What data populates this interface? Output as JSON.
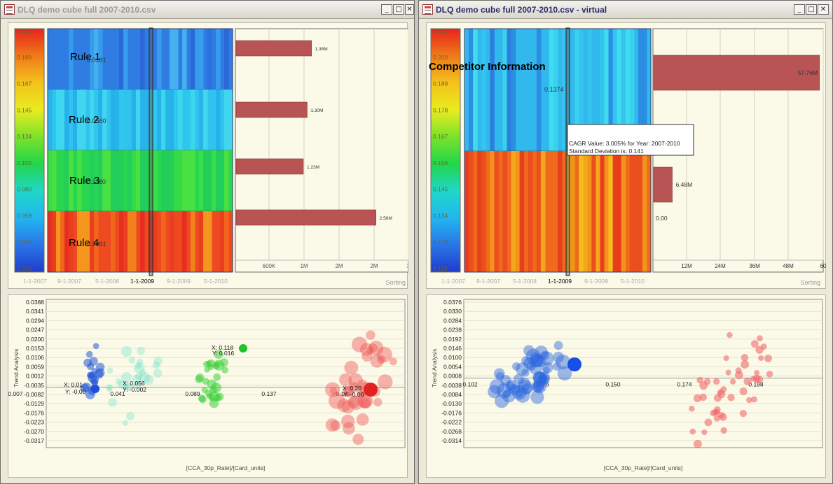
{
  "windows": [
    {
      "title": "DLQ demo cube full 2007-2010.csv",
      "colorbar": {
        "ticks": [
          "0.211",
          "0.189",
          "0.167",
          "0.145",
          "0.124",
          "0.102",
          "0.080",
          "0.058",
          "0.036",
          "0.015"
        ],
        "colors": [
          "#e8231c",
          "#f07a1a",
          "#f4c21c",
          "#e9ec1f",
          "#7be22a",
          "#22d64a",
          "#20d8c8",
          "#22b6ef",
          "#2a76e6",
          "#1f3bcc"
        ]
      },
      "heatmap": {
        "rows": [
          {
            "label": "Rule 1",
            "value": "0.0181",
            "base": "#2f7de2",
            "stripes": [
              "#3aa2ee",
              "#2b6fdc",
              "#4ab7f2",
              "#2a64d6",
              "#38a0ec"
            ]
          },
          {
            "label": "Rule 2",
            "value": "0.0560",
            "base": "#31c3ef",
            "stripes": [
              "#2ec9ed",
              "#3bdcec",
              "#25aeea",
              "#44d8ef",
              "#27b2ea"
            ]
          },
          {
            "label": "Rule 3",
            "value": "0.1180",
            "base": "#29d64f",
            "stripes": [
              "#3ce04a",
              "#21cd58",
              "#4ee240",
              "#22cc5c",
              "#37da48"
            ]
          },
          {
            "label": "Rule 4",
            "value": "0.2061",
            "base": "#ee4a22",
            "stripes": [
              "#f26a1c",
              "#e42a1e",
              "#f5a21c",
              "#ea3c1f",
              "#f28a1c"
            ]
          }
        ],
        "x_ticks": [
          "1-1-2007",
          "9-1-2007",
          "5-1-2008",
          "1-1-2009",
          "9-1-2009",
          "5-1-2010"
        ],
        "selected_tick": "1-1-2009"
      },
      "bars": {
        "labels": [
          "1.38M",
          "1.30M",
          "1.23M",
          "2.56M"
        ],
        "values": [
          1.38,
          1.3,
          1.23,
          2.56
        ],
        "x_ticks": [
          "600K",
          "1M",
          "2M",
          "2M",
          "3"
        ],
        "sort_label": "Sorting"
      },
      "scatter": {
        "y_ticks": [
          "0.0388",
          "0.0341",
          "0.0294",
          "0.0247",
          "0.0200",
          "0.0153",
          "0.0106",
          "0.0059",
          "0.0012",
          "-0.0035",
          "-0.0082",
          "-0.0129",
          "-0.0176",
          "-0.0223",
          "-0.0270",
          "-0.0317"
        ],
        "x_ticks": [
          "0.007",
          "0.041",
          "0.089",
          "0.137",
          "0.185"
        ],
        "y_label": "Trend Analysis",
        "x_label": "[CCA_30p_Rate]/[Card_units]",
        "annotations": [
          "X: 0.01",
          "Y: -0.00",
          "X: 0.056",
          "Y: -0.002",
          "X: 0.118",
          "Y: 0.016",
          "X: 0.20",
          "Y: -0.00"
        ]
      }
    },
    {
      "title": "DLQ demo cube full 2007-2010.csv - virtual",
      "colorbar": {
        "ticks": [
          "0.211",
          "0.200",
          "0.189",
          "0.178",
          "0.167",
          "0.156",
          "0.145",
          "0.134",
          "0.123",
          "0.113"
        ],
        "colors": [
          "#e8231c",
          "#f07a1a",
          "#f4c21c",
          "#e9ec1f",
          "#7be22a",
          "#22d64a",
          "#20d8c8",
          "#22b6ef",
          "#2a76e6",
          "#1f3bcc"
        ]
      },
      "heatmap": {
        "rows": [
          {
            "label": "Competitor Information",
            "value": "0.1374",
            "base": "#31b9ee",
            "stripes": [
              "#3ad6ee",
              "#2a86e0",
              "#43e1ec",
              "#2b74dc",
              "#36c6ee"
            ]
          },
          {
            "label": "",
            "value": "",
            "base": "#ef6a1c",
            "stripes": [
              "#f4b01c",
              "#e8361e",
              "#f5cc1e",
              "#ea4a1f",
              "#f29a1c"
            ]
          }
        ],
        "x_ticks": [
          "1-1-2007",
          "9-1-2007",
          "5-1-2008",
          "1-1-2009",
          "9-1-2009",
          "5-1-2010"
        ],
        "selected_tick": "1-1-2009",
        "tooltip": [
          "CAGR Value: 3.005% for Year: 2007-2010",
          "Standard Deviation is: 0.141"
        ]
      },
      "bars": {
        "labels": [
          "57.76M",
          "6.48M",
          "0.00"
        ],
        "values": [
          57.76,
          6.48,
          0
        ],
        "x_ticks": [
          "12M",
          "24M",
          "36M",
          "48M",
          "60"
        ],
        "sort_label": "Sorting"
      },
      "scatter": {
        "y_ticks": [
          "0.0376",
          "0.0330",
          "0.0284",
          "0.0238",
          "0.0192",
          "0.0146",
          "0.0100",
          "0.0054",
          "0.0008",
          "-0.0038",
          "-0.0084",
          "-0.0130",
          "-0.0176",
          "-0.0222",
          "-0.0268",
          "-0.0314"
        ],
        "x_ticks": [
          "0.102",
          "0.126",
          "0.150",
          "0.174",
          "0.198"
        ],
        "y_label": "Trend Analysis",
        "x_label": "[CCA_30p_Rate]/[Card_units]",
        "annotations": []
      }
    }
  ]
}
